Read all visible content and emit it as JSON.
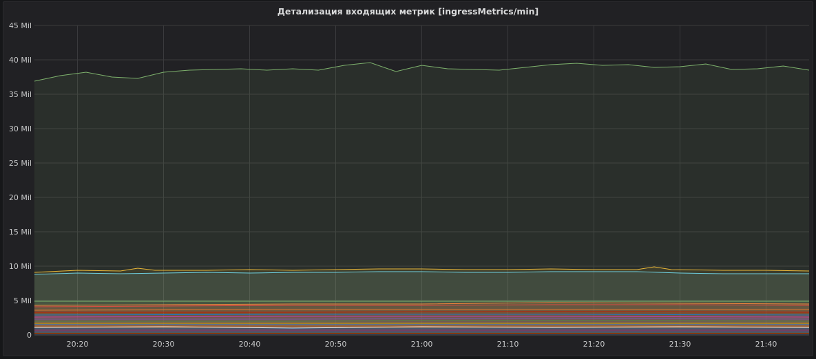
{
  "panel": {
    "title": "Детализация входящих метрик [ingressMetrics/min]"
  },
  "chart_data": {
    "type": "area",
    "title": "Детализация входящих метрик [ingressMetrics/min]",
    "x_range": [
      "20:15",
      "21:45"
    ],
    "ylim": [
      0,
      45000000
    ],
    "y_ticks": [
      "0",
      "5 Mil",
      "10 Mil",
      "15 Mil",
      "20 Mil",
      "25 Mil",
      "30 Mil",
      "35 Mil",
      "40 Mil",
      "45 Mil"
    ],
    "x_ticks": [
      "20:20",
      "20:30",
      "20:40",
      "20:50",
      "21:00",
      "21:10",
      "21:20",
      "21:30",
      "21:40"
    ],
    "grid": true,
    "legend": "none",
    "series": [
      {
        "color": "#7eb26d",
        "x": [
          "20:15",
          "20:18",
          "20:21",
          "20:24",
          "20:27",
          "20:30",
          "20:33",
          "20:36",
          "20:39",
          "20:42",
          "20:45",
          "20:48",
          "20:51",
          "20:54",
          "20:57",
          "21:00",
          "21:03",
          "21:06",
          "21:09",
          "21:12",
          "21:15",
          "21:18",
          "21:21",
          "21:24",
          "21:27",
          "21:30",
          "21:33",
          "21:36",
          "21:39",
          "21:42",
          "21:45"
        ],
        "y": [
          36900000,
          37700000,
          38200000,
          37500000,
          37300000,
          38200000,
          38500000,
          38600000,
          38700000,
          38500000,
          38700000,
          38500000,
          39200000,
          39600000,
          38300000,
          39200000,
          38700000,
          38600000,
          38500000,
          38900000,
          39300000,
          39500000,
          39200000,
          39300000,
          38900000,
          39000000,
          39400000,
          38600000,
          38700000,
          39100000,
          38500000
        ]
      },
      {
        "color": "#eab839",
        "x": [
          "20:15",
          "20:20",
          "20:25",
          "20:27",
          "20:29",
          "20:35",
          "20:40",
          "20:45",
          "20:50",
          "20:55",
          "21:00",
          "21:05",
          "21:10",
          "21:15",
          "21:20",
          "21:25",
          "21:27",
          "21:29",
          "21:35",
          "21:40",
          "21:45"
        ],
        "y": [
          9100000,
          9400000,
          9300000,
          9700000,
          9400000,
          9400000,
          9500000,
          9400000,
          9500000,
          9600000,
          9600000,
          9500000,
          9500000,
          9600000,
          9500000,
          9500000,
          9900000,
          9500000,
          9400000,
          9400000,
          9300000
        ]
      },
      {
        "color": "#6ed0e0",
        "x": [
          "20:15",
          "20:20",
          "20:25",
          "20:30",
          "20:35",
          "20:40",
          "20:45",
          "20:50",
          "20:55",
          "21:00",
          "21:05",
          "21:10",
          "21:15",
          "21:20",
          "21:25",
          "21:30",
          "21:35",
          "21:40",
          "21:45"
        ],
        "y": [
          8800000,
          9000000,
          8900000,
          9000000,
          9100000,
          9000000,
          9100000,
          9100000,
          9200000,
          9200000,
          9100000,
          9100000,
          9200000,
          9200000,
          9200000,
          9000000,
          8900000,
          8900000,
          8900000
        ]
      },
      {
        "color": "#7eb26d",
        "x": [
          "20:15",
          "21:45"
        ],
        "y": [
          4900000,
          4900000
        ]
      },
      {
        "color": "#ef843c",
        "x": [
          "20:15",
          "20:30",
          "20:45",
          "21:00",
          "21:15",
          "21:30",
          "21:45"
        ],
        "y": [
          4300000,
          4400000,
          4500000,
          4500000,
          4700000,
          4600000,
          4500000
        ]
      },
      {
        "color": "#e24d42",
        "x": [
          "20:15",
          "20:30",
          "20:45",
          "21:00",
          "21:15",
          "21:30",
          "21:45"
        ],
        "y": [
          4100000,
          4200000,
          4300000,
          4300000,
          4400000,
          4400000,
          4300000
        ]
      },
      {
        "color": "#e0752d",
        "x": [
          "20:15",
          "20:45",
          "21:15",
          "21:45"
        ],
        "y": [
          3600000,
          3700000,
          3700000,
          3700000
        ]
      },
      {
        "color": "#bf1b00",
        "x": [
          "20:15",
          "20:45",
          "21:15",
          "21:45"
        ],
        "y": [
          3300000,
          3300000,
          3400000,
          3300000
        ]
      },
      {
        "color": "#1f78c1",
        "x": [
          "20:15",
          "20:45",
          "21:15",
          "21:45"
        ],
        "y": [
          2900000,
          3000000,
          3000000,
          2900000
        ]
      },
      {
        "color": "#ba43a9",
        "x": [
          "20:15",
          "20:45",
          "21:15",
          "21:45"
        ],
        "y": [
          2600000,
          2700000,
          2700000,
          2600000
        ]
      },
      {
        "color": "#705da0",
        "x": [
          "20:15",
          "20:45",
          "21:15",
          "21:45"
        ],
        "y": [
          2300000,
          2300000,
          2400000,
          2300000
        ]
      },
      {
        "color": "#508642",
        "x": [
          "20:15",
          "20:45",
          "21:15",
          "21:45"
        ],
        "y": [
          2000000,
          2000000,
          2100000,
          2000000
        ]
      },
      {
        "color": "#cca300",
        "x": [
          "20:15",
          "20:45",
          "21:15",
          "21:45"
        ],
        "y": [
          1700000,
          1700000,
          1700000,
          1700000
        ]
      },
      {
        "color": "#447ebc",
        "x": [
          "20:15",
          "20:45",
          "21:15",
          "21:45"
        ],
        "y": [
          1500000,
          1500000,
          1500000,
          1500000
        ]
      },
      {
        "color": "#c15c17",
        "x": [
          "20:15",
          "20:45",
          "21:15",
          "21:45"
        ],
        "y": [
          1300000,
          1300000,
          1300000,
          1300000
        ]
      },
      {
        "color": "#e5e5e5",
        "x": [
          "20:15",
          "20:30",
          "20:45",
          "21:00",
          "21:15",
          "21:30",
          "21:45"
        ],
        "y": [
          1100000,
          1200000,
          1000000,
          1200000,
          1100000,
          1200000,
          1100000
        ]
      },
      {
        "color": "#0a437c",
        "x": [
          "20:15",
          "21:45"
        ],
        "y": [
          900000,
          900000
        ]
      },
      {
        "color": "#6d1f62",
        "x": [
          "20:15",
          "21:45"
        ],
        "y": [
          700000,
          700000
        ]
      },
      {
        "color": "#584477",
        "x": [
          "20:15",
          "21:45"
        ],
        "y": [
          550000,
          550000
        ]
      },
      {
        "color": "#2f575e",
        "x": [
          "20:15",
          "21:45"
        ],
        "y": [
          400000,
          400000
        ]
      },
      {
        "color": "#99440a",
        "x": [
          "20:15",
          "21:45"
        ],
        "y": [
          250000,
          250000
        ]
      },
      {
        "color": "#58140c",
        "x": [
          "20:15",
          "21:45"
        ],
        "y": [
          120000,
          120000
        ]
      },
      {
        "color": "#052b51",
        "x": [
          "20:15",
          "21:45"
        ],
        "y": [
          50000,
          50000
        ]
      }
    ]
  }
}
